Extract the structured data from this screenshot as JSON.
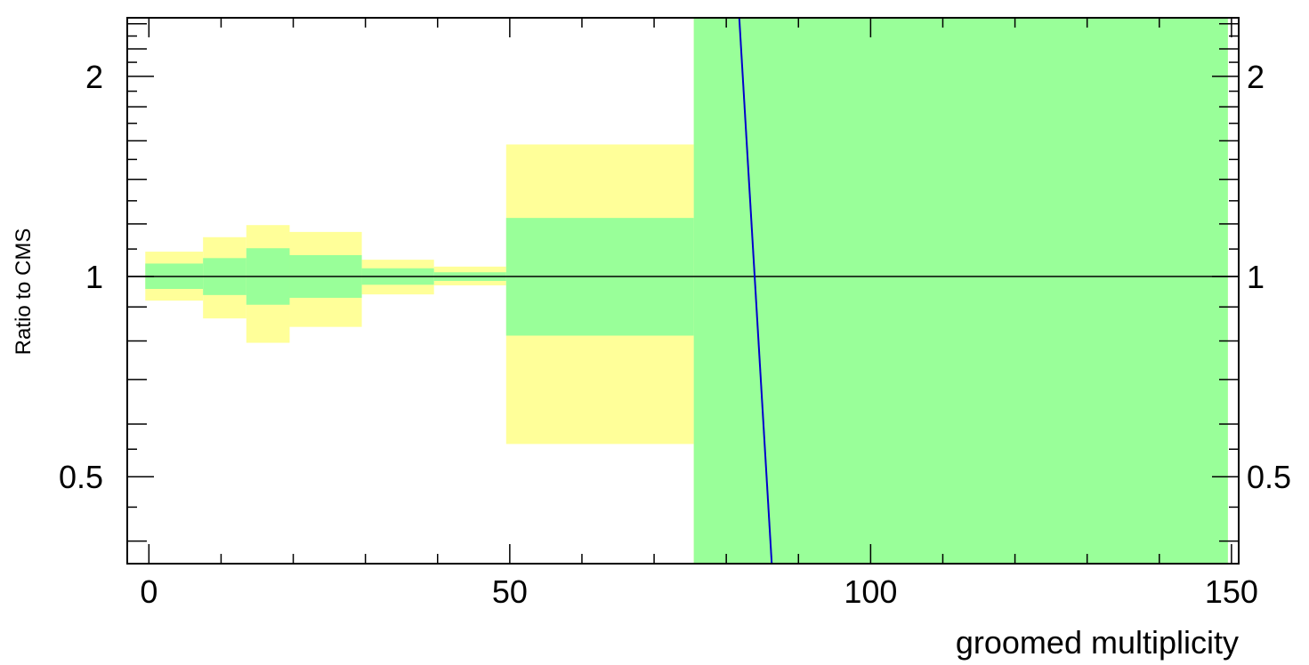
{
  "chart_data": {
    "type": "area",
    "xlabel": "groomed multiplicity",
    "ylabel": "Ratio to CMS",
    "xlim": [
      -3,
      151
    ],
    "ylim": [
      0.37,
      2.45
    ],
    "y_scale": "log",
    "grid": false,
    "x_ticks": [
      {
        "value": 0,
        "label": "0"
      },
      {
        "value": 50,
        "label": "50"
      },
      {
        "value": 100,
        "label": "100"
      },
      {
        "value": 150,
        "label": "150"
      }
    ],
    "y_ticks": [
      {
        "value": 0.5,
        "label": "0.5"
      },
      {
        "value": 1,
        "label": "1"
      },
      {
        "value": 2,
        "label": "2"
      }
    ],
    "reference_line": 1,
    "series": [
      {
        "kind": "band",
        "color": "#ffff99",
        "bins": [
          {
            "x0": -0.5,
            "x1": 7.5,
            "low": 0.92,
            "high": 1.09
          },
          {
            "x0": 7.5,
            "x1": 13.5,
            "low": 0.865,
            "high": 1.146
          },
          {
            "x0": 13.5,
            "x1": 19.5,
            "low": 0.795,
            "high": 1.195
          },
          {
            "x0": 19.5,
            "x1": 29.5,
            "low": 0.84,
            "high": 1.167
          },
          {
            "x0": 29.5,
            "x1": 39.5,
            "low": 0.94,
            "high": 1.06
          },
          {
            "x0": 39.5,
            "x1": 49.5,
            "low": 0.97,
            "high": 1.035
          },
          {
            "x0": 49.5,
            "x1": 75.5,
            "low": 0.56,
            "high": 1.58
          },
          {
            "x0": 75.5,
            "x1": 149.5,
            "low": 0.37,
            "high": 2.45
          }
        ]
      },
      {
        "kind": "band",
        "color": "#99ff99",
        "bins": [
          {
            "x0": -0.5,
            "x1": 7.5,
            "low": 0.958,
            "high": 1.046
          },
          {
            "x0": 7.5,
            "x1": 13.5,
            "low": 0.938,
            "high": 1.066
          },
          {
            "x0": 13.5,
            "x1": 19.5,
            "low": 0.907,
            "high": 1.103
          },
          {
            "x0": 19.5,
            "x1": 29.5,
            "low": 0.929,
            "high": 1.077
          },
          {
            "x0": 29.5,
            "x1": 39.5,
            "low": 0.972,
            "high": 1.029
          },
          {
            "x0": 39.5,
            "x1": 49.5,
            "low": 0.985,
            "high": 1.015
          },
          {
            "x0": 49.5,
            "x1": 75.5,
            "low": 0.815,
            "high": 1.225
          },
          {
            "x0": 75.5,
            "x1": 149.5,
            "low": 0.37,
            "high": 2.45
          }
        ]
      },
      {
        "kind": "line",
        "color": "#0000cc",
        "points": [
          [
            81.8,
            2.45
          ],
          [
            86.3,
            0.37
          ]
        ]
      }
    ]
  }
}
